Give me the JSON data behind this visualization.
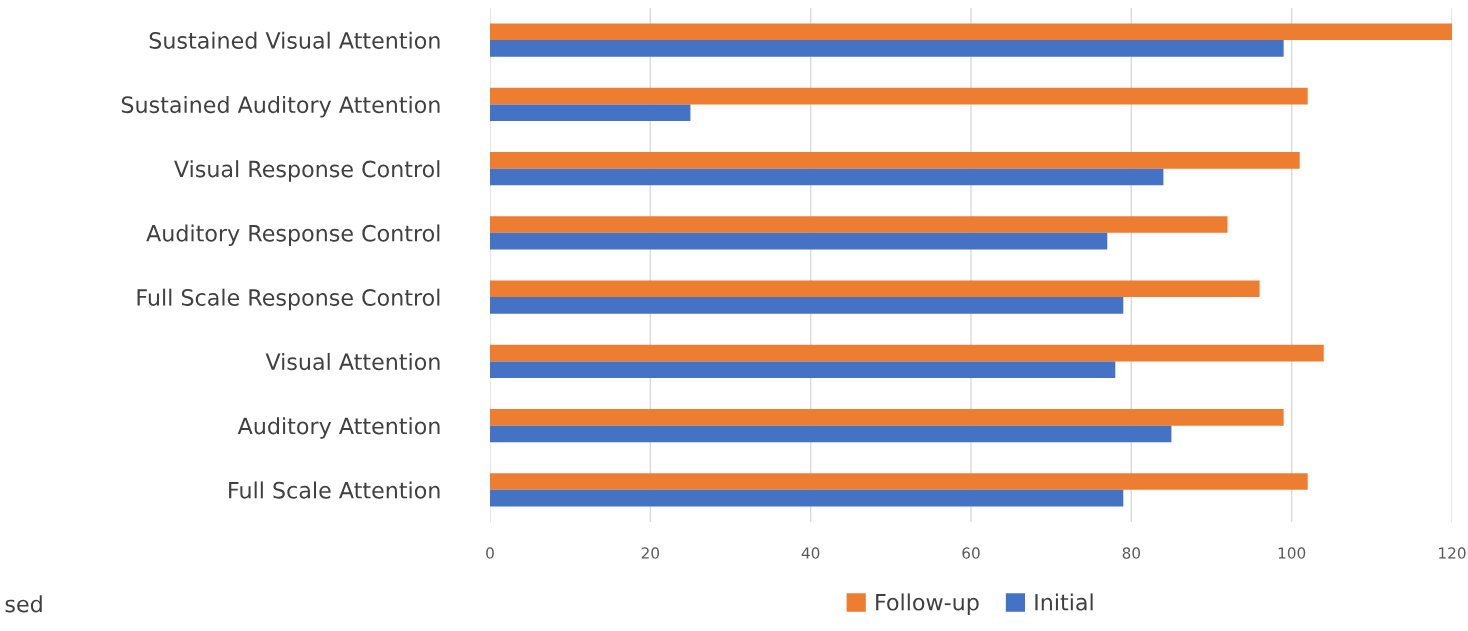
{
  "chart_data": {
    "type": "bar",
    "orientation": "horizontal",
    "categories": [
      "Sustained Visual Attention",
      "Sustained Auditory Attention",
      "Visual Response Control",
      "Auditory Response Control",
      "Full Scale Response Control",
      "Visual Attention",
      "Auditory Attention",
      "Full Scale Attention"
    ],
    "series": [
      {
        "name": "Follow-up",
        "color": "#ed7d31",
        "values": [
          120,
          102,
          101,
          92,
          96,
          104,
          99,
          102
        ]
      },
      {
        "name": "Initial",
        "color": "#4472c4",
        "values": [
          99,
          25,
          84,
          77,
          79,
          78,
          85,
          79
        ]
      }
    ],
    "xlim": [
      0,
      120
    ],
    "xticks": [
      0,
      20,
      40,
      60,
      80,
      100,
      120
    ],
    "grid": "x",
    "legend": "bottom",
    "annotations": [
      "sed"
    ]
  }
}
